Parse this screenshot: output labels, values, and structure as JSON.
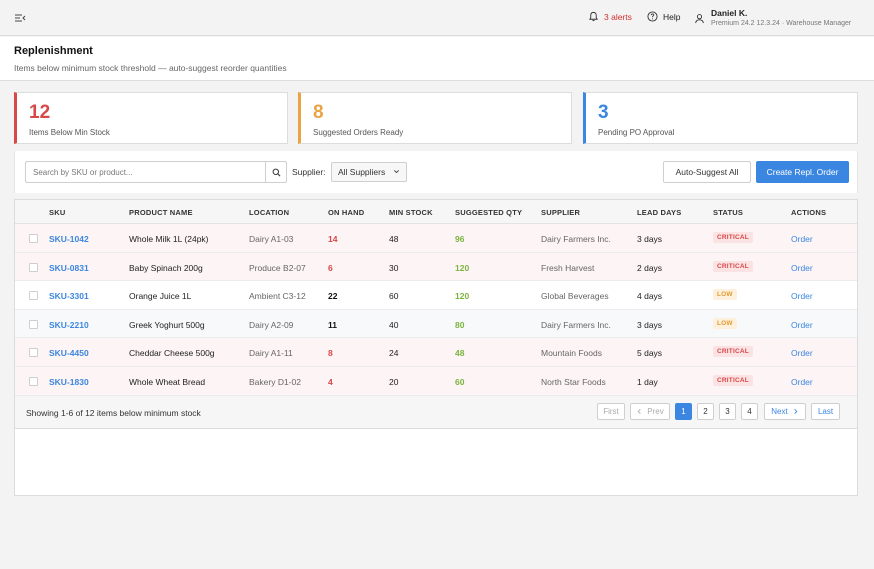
{
  "topbar": {
    "alerts_label": "3 alerts",
    "help_label": "Help",
    "user_name": "Daniel K.",
    "user_meta": "Premium 24.2 12.3.24 · Warehouse Manager"
  },
  "header": {
    "title": "Replenishment",
    "subtitle": "Items below minimum stock threshold — auto-suggest reorder quantities"
  },
  "stats": [
    {
      "value": "12",
      "label": "Items Below Min Stock"
    },
    {
      "value": "8",
      "label": "Suggested Orders Ready"
    },
    {
      "value": "3",
      "label": "Pending PO Approval"
    }
  ],
  "toolbar": {
    "search_placeholder": "Search by SKU or product...",
    "supplier_label": "Supplier:",
    "supplier_value": "All Suppliers",
    "auto_suggest_label": "Auto-Suggest All",
    "create_label": "Create Repl. Order"
  },
  "table": {
    "columns": [
      "SKU",
      "PRODUCT NAME",
      "LOCATION",
      "ON HAND",
      "MIN STOCK",
      "SUGGESTED QTY",
      "SUPPLIER",
      "LEAD DAYS",
      "STATUS",
      "ACTIONS"
    ],
    "rows": [
      {
        "sku": "SKU-1042",
        "product": "Whole Milk 1L (24pk)",
        "location": "Dairy A1-03",
        "on_hand": "14",
        "min_stock": "48",
        "suggested": "96",
        "supplier": "Dairy Farmers Inc.",
        "lead": "3 days",
        "status": "CRITICAL",
        "action": "Order"
      },
      {
        "sku": "SKU-0831",
        "product": "Baby Spinach 200g",
        "location": "Produce B2-07",
        "on_hand": "6",
        "min_stock": "30",
        "suggested": "120",
        "supplier": "Fresh Harvest",
        "lead": "2 days",
        "status": "CRITICAL",
        "action": "Order"
      },
      {
        "sku": "SKU-3301",
        "product": "Orange Juice 1L",
        "location": "Ambient C3-12",
        "on_hand": "22",
        "min_stock": "60",
        "suggested": "120",
        "supplier": "Global Beverages",
        "lead": "4 days",
        "status": "LOW",
        "action": "Order"
      },
      {
        "sku": "SKU-2210",
        "product": "Greek Yoghurt 500g",
        "location": "Dairy A2-09",
        "on_hand": "11",
        "min_stock": "40",
        "suggested": "80",
        "supplier": "Dairy Farmers Inc.",
        "lead": "3 days",
        "status": "LOW",
        "action": "Order"
      },
      {
        "sku": "SKU-4450",
        "product": "Cheddar Cheese 500g",
        "location": "Dairy A1-11",
        "on_hand": "8",
        "min_stock": "24",
        "suggested": "48",
        "supplier": "Mountain Foods",
        "lead": "5 days",
        "status": "CRITICAL",
        "action": "Order"
      },
      {
        "sku": "SKU-1830",
        "product": "Whole Wheat Bread",
        "location": "Bakery D1-02",
        "on_hand": "4",
        "min_stock": "20",
        "suggested": "60",
        "supplier": "North Star Foods",
        "lead": "1 day",
        "status": "CRITICAL",
        "action": "Order"
      }
    ]
  },
  "footer": {
    "showing": "Showing 1-6 of 12 items below minimum stock",
    "first": "First",
    "prev": "Prev",
    "pages": [
      "1",
      "2",
      "3",
      "4"
    ],
    "next": "Next",
    "last": "Last"
  }
}
